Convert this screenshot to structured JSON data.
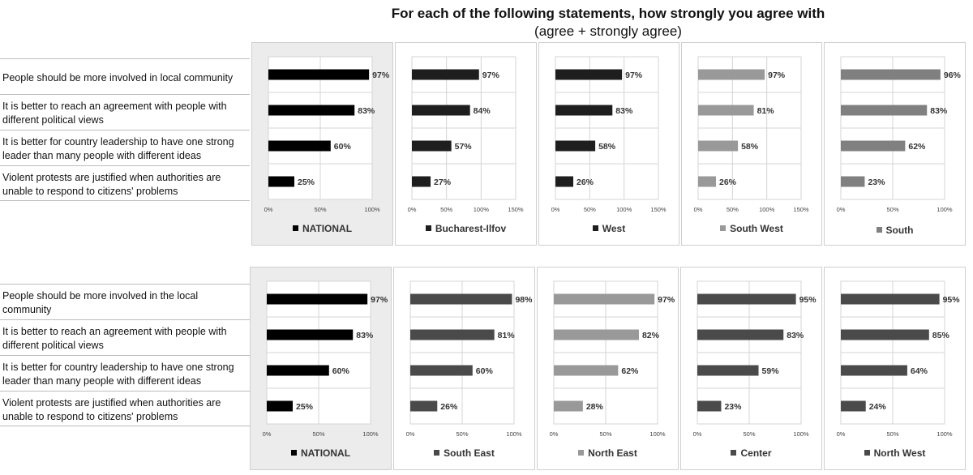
{
  "title": {
    "line1": "For each of the following statements, how strongly you agree with",
    "line2": "(agree + strongly agree)"
  },
  "rows": [
    {
      "labels": [
        "People should be more involved in local community",
        "It is better to reach an agreement with people with different political views",
        "It is better for country leadership to have one strong leader than many people with different ideas",
        "Violent protests are justified when authorities are unable to respond to citizens' problems"
      ]
    },
    {
      "labels": [
        "People should be more involved in the local community",
        "It is better to reach an agreement with people with different political views",
        "It is better for country leadership to have one strong leader than many people with different ideas",
        "Violent protests are justified when authorities are unable to respond to citizens' problems"
      ]
    }
  ],
  "chart_data": [
    {
      "type": "bar",
      "orientation": "horizontal",
      "series": [
        {
          "name": "NATIONAL",
          "values": [
            97,
            83,
            60,
            25
          ]
        }
      ],
      "value_labels": [
        "97%",
        "83%",
        "60%",
        "25%"
      ],
      "xlim": [
        0,
        100
      ],
      "ticks": [
        "0%",
        "50%",
        "100%"
      ],
      "color": "#000000"
    },
    {
      "type": "bar",
      "orientation": "horizontal",
      "series": [
        {
          "name": "Bucharest-Ilfov",
          "values": [
            97,
            84,
            57,
            27
          ]
        }
      ],
      "value_labels": [
        "97%",
        "84%",
        "57%",
        "27%"
      ],
      "xlim": [
        0,
        150
      ],
      "ticks": [
        "0%",
        "50%",
        "100%",
        "150%"
      ],
      "color": "#1e1e1e"
    },
    {
      "type": "bar",
      "orientation": "horizontal",
      "series": [
        {
          "name": "West",
          "values": [
            97,
            83,
            58,
            26
          ]
        }
      ],
      "value_labels": [
        "97%",
        "83%",
        "58%",
        "26%"
      ],
      "xlim": [
        0,
        150
      ],
      "ticks": [
        "0%",
        "50%",
        "100%",
        "150%"
      ],
      "color": "#1e1e1e"
    },
    {
      "type": "bar",
      "orientation": "horizontal",
      "series": [
        {
          "name": "South West",
          "values": [
            97,
            81,
            58,
            26
          ]
        }
      ],
      "value_labels": [
        "97%",
        "81%",
        "58%",
        "26%"
      ],
      "xlim": [
        0,
        150
      ],
      "ticks": [
        "0%",
        "50%",
        "100%",
        "150%"
      ],
      "color": "#999999"
    },
    {
      "type": "bar",
      "orientation": "horizontal",
      "series": [
        {
          "name": "South",
          "values": [
            96,
            83,
            62,
            23
          ]
        }
      ],
      "value_labels": [
        "96%",
        "83%",
        "62%",
        "23%"
      ],
      "xlim": [
        0,
        100
      ],
      "ticks": [
        "0%",
        "50%",
        "100%"
      ],
      "color": "#808080"
    },
    {
      "type": "bar",
      "orientation": "horizontal",
      "series": [
        {
          "name": "NATIONAL",
          "values": [
            97,
            83,
            60,
            25
          ]
        }
      ],
      "value_labels": [
        "97%",
        "83%",
        "60%",
        "25%"
      ],
      "xlim": [
        0,
        100
      ],
      "ticks": [
        "0%",
        "50%",
        "100%"
      ],
      "color": "#000000"
    },
    {
      "type": "bar",
      "orientation": "horizontal",
      "series": [
        {
          "name": "South East",
          "values": [
            98,
            81,
            60,
            26
          ]
        }
      ],
      "value_labels": [
        "98%",
        "81%",
        "60%",
        "26%"
      ],
      "xlim": [
        0,
        100
      ],
      "ticks": [
        "0%",
        "50%",
        "100%"
      ],
      "color": "#4a4a4a"
    },
    {
      "type": "bar",
      "orientation": "horizontal",
      "series": [
        {
          "name": "North East",
          "values": [
            97,
            82,
            62,
            28
          ]
        }
      ],
      "value_labels": [
        "97%",
        "82%",
        "62%",
        "28%"
      ],
      "xlim": [
        0,
        100
      ],
      "ticks": [
        "0%",
        "50%",
        "100%"
      ],
      "color": "#999999"
    },
    {
      "type": "bar",
      "orientation": "horizontal",
      "series": [
        {
          "name": "Center",
          "values": [
            95,
            83,
            59,
            23
          ]
        }
      ],
      "value_labels": [
        "95%",
        "83%",
        "59%",
        "23%"
      ],
      "xlim": [
        0,
        100
      ],
      "ticks": [
        "0%",
        "50%",
        "100%"
      ],
      "color": "#4a4a4a"
    },
    {
      "type": "bar",
      "orientation": "horizontal",
      "series": [
        {
          "name": "North West",
          "values": [
            95,
            85,
            64,
            24
          ]
        }
      ],
      "value_labels": [
        "95%",
        "85%",
        "64%",
        "24%"
      ],
      "xlim": [
        0,
        100
      ],
      "ticks": [
        "0%",
        "50%",
        "100%"
      ],
      "color": "#4a4a4a"
    }
  ]
}
